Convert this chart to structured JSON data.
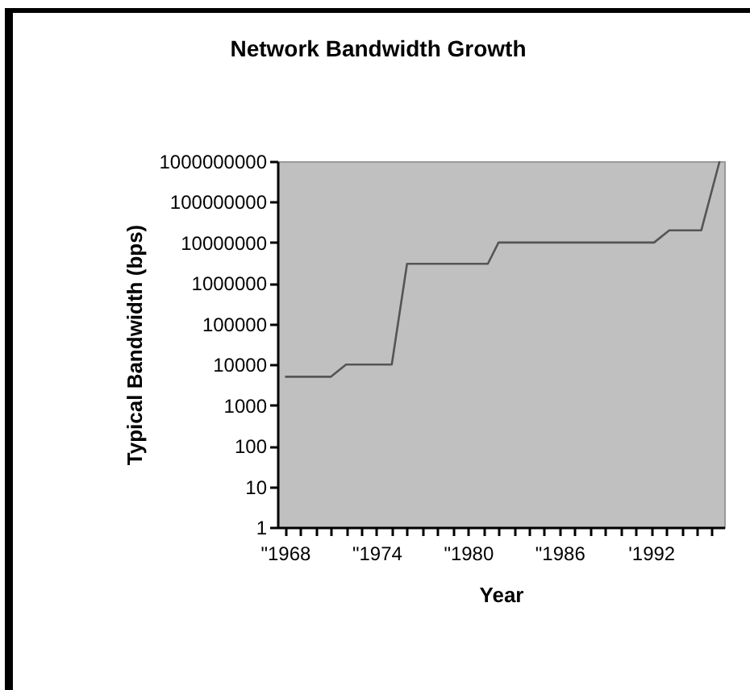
{
  "chart_data": {
    "type": "line",
    "title": "Network Bandwidth Growth",
    "xlabel": "Year",
    "ylabel": "Typical Bandwidth (bps)",
    "x": [
      1968,
      1971,
      1972,
      1975,
      1976,
      1981.3,
      1982,
      1992.2,
      1993.2,
      1995.3,
      1996.5
    ],
    "series": [
      {
        "color": "#555555",
        "values": [
          5000,
          5000,
          10000,
          10000,
          3000000,
          3000000,
          10000000,
          10000000,
          20000000,
          20000000,
          1000000000
        ]
      }
    ],
    "xlim": [
      1967.5,
      1996.8
    ],
    "xticks": [
      {
        "value": 1968,
        "label": "\"1968"
      },
      {
        "value": 1969,
        "label": null
      },
      {
        "value": 1970,
        "label": null
      },
      {
        "value": 1971,
        "label": null
      },
      {
        "value": 1972,
        "label": null
      },
      {
        "value": 1973,
        "label": null
      },
      {
        "value": 1974,
        "label": "\"1974"
      },
      {
        "value": 1975,
        "label": null
      },
      {
        "value": 1976,
        "label": null
      },
      {
        "value": 1977,
        "label": null
      },
      {
        "value": 1978,
        "label": null
      },
      {
        "value": 1979,
        "label": null
      },
      {
        "value": 1980,
        "label": "\"1980"
      },
      {
        "value": 1981,
        "label": null
      },
      {
        "value": 1982,
        "label": null
      },
      {
        "value": 1983,
        "label": null
      },
      {
        "value": 1984,
        "label": null
      },
      {
        "value": 1985,
        "label": null
      },
      {
        "value": 1986,
        "label": "\"1986"
      },
      {
        "value": 1987,
        "label": null
      },
      {
        "value": 1988,
        "label": null
      },
      {
        "value": 1989,
        "label": null
      },
      {
        "value": 1990,
        "label": null
      },
      {
        "value": 1991,
        "label": null
      },
      {
        "value": 1992,
        "label": "'1992"
      },
      {
        "value": 1993,
        "label": null
      },
      {
        "value": 1994,
        "label": null
      },
      {
        "value": 1995,
        "label": null
      },
      {
        "value": 1996,
        "label": null
      }
    ],
    "ylim": [
      1,
      1000000000
    ],
    "yticks": [
      1,
      10,
      100,
      1000,
      10000,
      100000,
      1000000,
      10000000,
      100000000,
      1000000000
    ],
    "log": "y",
    "grid": false,
    "legend": false,
    "marker": "none",
    "line_style": "solid"
  }
}
